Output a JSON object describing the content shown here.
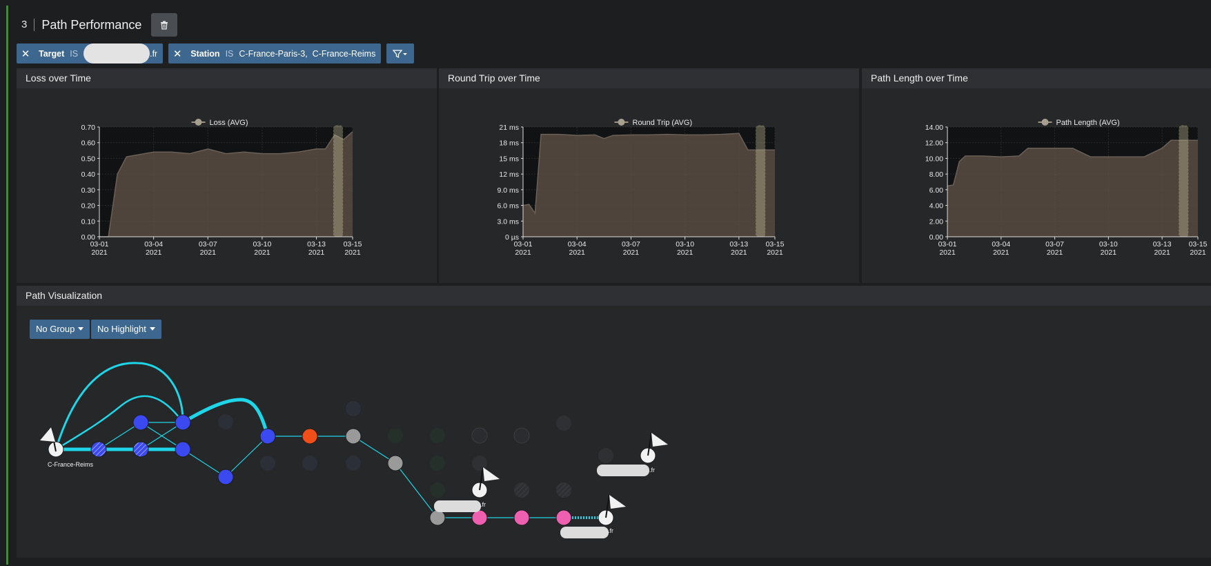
{
  "header": {
    "number": "3",
    "title": "Path Performance"
  },
  "filters": {
    "target": {
      "key": "Target",
      "op": "IS",
      "value_suffix": ".fr"
    },
    "station": {
      "key": "Station",
      "op": "IS",
      "value": "C-France-Paris-3,  C-France-Reims"
    }
  },
  "panels": {
    "loss": {
      "title": "Loss over Time"
    },
    "rtt": {
      "title": "Round Trip over Time"
    },
    "path": {
      "title": "Path Length over Time"
    },
    "viz": {
      "title": "Path Visualization"
    }
  },
  "viz": {
    "group_label": "No Group",
    "highlight_label": "No Highlight",
    "source_label": "C-France-Reims",
    "dest_suffix": ".fr"
  },
  "colors": {
    "area_fill": "#5a4d44",
    "area_line": "#6a6058",
    "highlight": "#e6e29a",
    "path_line": "#1fd6e8",
    "node_blue": "#3b49f0",
    "node_orange": "#f24e17",
    "node_gray": "#9a9a9a",
    "node_pink": "#ef5fb0"
  },
  "chart_data": [
    {
      "type": "area",
      "legend": "Loss (AVG)",
      "x": [
        "03-01",
        "03-01",
        "03-02",
        "03-02",
        "03-03",
        "03-04",
        "03-05",
        "03-06",
        "03-07",
        "03-08",
        "03-09",
        "03-10",
        "03-11",
        "03-12",
        "03-13",
        "03-13",
        "03-14",
        "03-14",
        "03-15"
      ],
      "values": [
        0.0,
        0.0,
        0.4,
        0.51,
        0.52,
        0.54,
        0.54,
        0.53,
        0.56,
        0.53,
        0.54,
        0.53,
        0.53,
        0.54,
        0.56,
        0.56,
        0.65,
        0.62,
        0.67
      ],
      "y_ticks": [
        "0.00",
        "0.10",
        "0.20",
        "0.30",
        "0.40",
        "0.50",
        "0.60",
        "0.70"
      ],
      "ylim": [
        0,
        0.7
      ],
      "x_ticks": [
        "03-01",
        "03-04",
        "03-07",
        "03-10",
        "03-13",
        "03-15"
      ],
      "x_year": "2021",
      "highlight_range": [
        "03-14",
        "03-14"
      ]
    },
    {
      "type": "area",
      "legend": "Round Trip (AVG)",
      "x": [
        "03-01",
        "03-01",
        "03-01",
        "03-02",
        "03-03",
        "03-04",
        "03-05",
        "03-05",
        "03-06",
        "03-07",
        "03-08",
        "03-09",
        "03-10",
        "03-11",
        "03-12",
        "03-13",
        "03-13",
        "03-14",
        "03-15"
      ],
      "values": [
        6.0,
        6.2,
        4.5,
        19.6,
        19.6,
        19.4,
        19.5,
        18.8,
        19.4,
        19.5,
        19.5,
        19.6,
        19.5,
        19.5,
        19.6,
        19.8,
        16.6,
        16.6,
        16.6
      ],
      "y_ticks": [
        "0 µs",
        "3.0 ms",
        "6.0 ms",
        "9.0 ms",
        "12 ms",
        "15 ms",
        "18 ms",
        "21 ms"
      ],
      "ylim": [
        0,
        21
      ],
      "unit": "ms",
      "x_ticks": [
        "03-01",
        "03-04",
        "03-07",
        "03-10",
        "03-13",
        "03-15"
      ],
      "x_year": "2021",
      "highlight_range": [
        "03-14",
        "03-14"
      ]
    },
    {
      "type": "area",
      "legend": "Path Length (AVG)",
      "x": [
        "03-01",
        "03-01",
        "03-01",
        "03-02",
        "03-02",
        "03-03",
        "03-04",
        "03-05",
        "03-05",
        "03-06",
        "03-07",
        "03-08",
        "03-09",
        "03-10",
        "03-11",
        "03-12",
        "03-13",
        "03-13",
        "03-14",
        "03-15"
      ],
      "values": [
        6.5,
        6.6,
        9.6,
        10.3,
        10.3,
        10.3,
        10.2,
        10.3,
        11.3,
        11.3,
        11.3,
        11.3,
        10.2,
        10.2,
        10.2,
        10.2,
        11.3,
        12.3,
        12.3,
        12.3
      ],
      "y_ticks": [
        "0.00",
        "2.00",
        "4.00",
        "6.00",
        "8.00",
        "10.00",
        "12.00",
        "14.00"
      ],
      "ylim": [
        0,
        14
      ],
      "x_ticks": [
        "03-01",
        "03-04",
        "03-07",
        "03-10",
        "03-13",
        "03-15"
      ],
      "x_year": "2021",
      "highlight_range": [
        "03-14",
        "03-14"
      ]
    }
  ]
}
